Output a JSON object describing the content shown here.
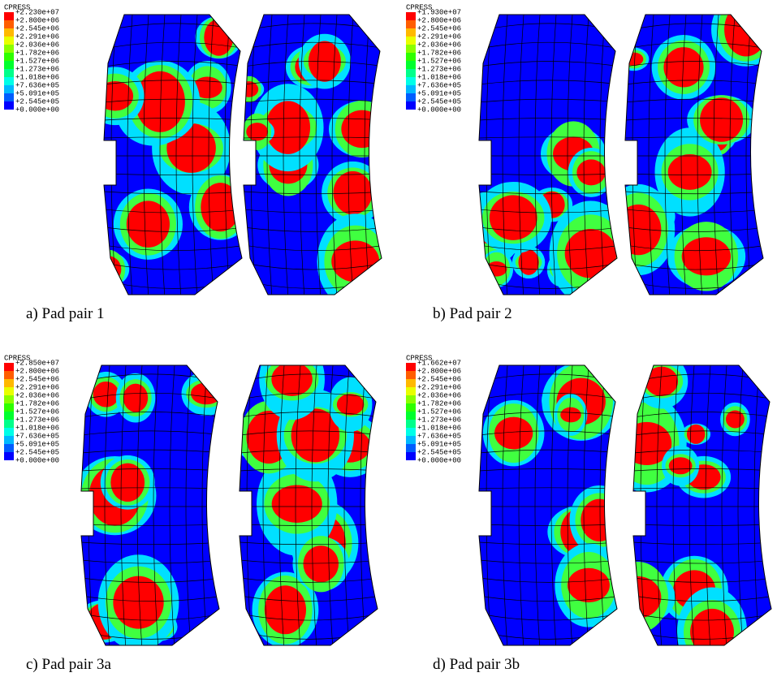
{
  "panels": [
    {
      "caption": "a) Pad pair 1",
      "legend": {
        "title": "CPRESS",
        "labels": [
          "+2.230e+07",
          "+2.800e+06",
          "+2.545e+06",
          "+2.291e+06",
          "+2.036e+06",
          "+1.782e+06",
          "+1.527e+06",
          "+1.273e+06",
          "+1.018e+06",
          "+7.636e+05",
          "+5.091e+05",
          "+2.545e+05",
          "+0.000e+00"
        ]
      }
    },
    {
      "caption": "b) Pad pair 2",
      "legend": {
        "title": "CPRESS",
        "labels": [
          "+1.930e+07",
          "+2.800e+06",
          "+2.545e+06",
          "+2.291e+06",
          "+2.036e+06",
          "+1.782e+06",
          "+1.527e+06",
          "+1.273e+06",
          "+1.018e+06",
          "+7.636e+05",
          "+5.091e+05",
          "+2.545e+05",
          "+0.000e+00"
        ]
      }
    },
    {
      "caption": "c) Pad pair 3a",
      "legend": {
        "title": "CPRESS",
        "labels": [
          "+2.850e+07",
          "+2.800e+06",
          "+2.545e+06",
          "+2.291e+06",
          "+2.036e+06",
          "+1.782e+06",
          "+1.527e+06",
          "+1.273e+06",
          "+1.018e+06",
          "+7.636e+05",
          "+5.091e+05",
          "+2.545e+05",
          "+0.000e+00"
        ]
      }
    },
    {
      "caption": "d) Pad pair 3b",
      "legend": {
        "title": "CPRESS",
        "labels": [
          "+1.662e+07",
          "+2.800e+06",
          "+2.545e+06",
          "+2.291e+06",
          "+2.036e+06",
          "+1.782e+06",
          "+1.527e+06",
          "+1.273e+06",
          "+1.018e+06",
          "+7.636e+05",
          "+5.091e+05",
          "+2.545e+05",
          "+0.000e+00"
        ]
      }
    }
  ]
}
